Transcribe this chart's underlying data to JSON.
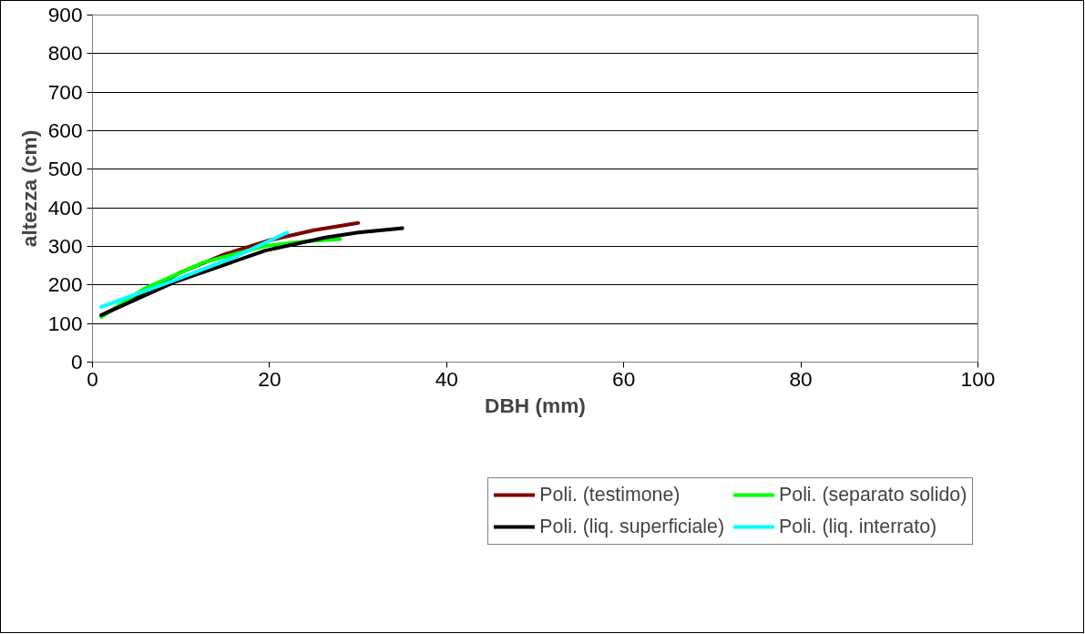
{
  "chart_data": {
    "type": "line",
    "xlabel": "DBH (mm)",
    "ylabel": "altezza (cm)",
    "xlim": [
      0,
      100
    ],
    "xticks": [
      0,
      20,
      40,
      60,
      80,
      100
    ],
    "ylim": [
      0,
      900
    ],
    "yticks": [
      0,
      100,
      200,
      300,
      400,
      500,
      600,
      700,
      800,
      900
    ],
    "grid": "y",
    "legend": "bottom",
    "marker": "none",
    "line_style": "solid",
    "series": [
      {
        "name": "Poli. (testimone)",
        "color": "#800000",
        "x": [
          1,
          5,
          10,
          15,
          20,
          25,
          30
        ],
        "values": [
          120,
          170,
          233,
          280,
          316,
          342,
          361
        ]
      },
      {
        "name": "Poli. (separato solido)",
        "color": "#00ff00",
        "x": [
          1,
          5.8,
          12.6,
          19.5,
          24,
          28
        ],
        "values": [
          117,
          190,
          259,
          301,
          313,
          319
        ]
      },
      {
        "name": "Poli. (liq. superficiale)",
        "color": "#000000",
        "x": [
          1,
          9.2,
          19.5,
          26.3,
          30,
          35
        ],
        "values": [
          122,
          207,
          289,
          323,
          336,
          347
        ]
      },
      {
        "name": "Poli. (liq. interrato)",
        "color": "#00ffff",
        "x": [
          1,
          9.2,
          16,
          22
        ],
        "values": [
          143,
          212,
          272,
          336
        ]
      }
    ]
  }
}
